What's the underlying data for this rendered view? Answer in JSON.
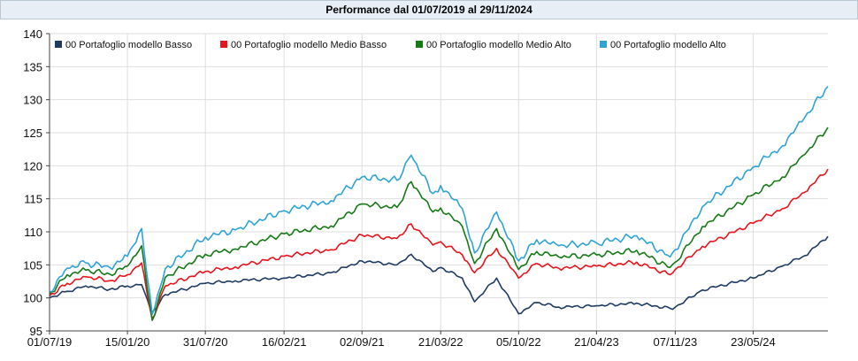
{
  "title": "Performance dal 01/07/2019 al 29/11/2024",
  "chart_data": {
    "type": "line",
    "title": "Performance dal 01/07/2019 al 29/11/2024",
    "xlabel": "",
    "ylabel": "",
    "ylim": [
      95,
      140
    ],
    "y_ticks": [
      95,
      100,
      105,
      110,
      115,
      120,
      125,
      130,
      135,
      140
    ],
    "x_ticks": [
      "01/07/19",
      "15/01/20",
      "31/07/20",
      "16/02/21",
      "02/09/21",
      "21/03/22",
      "05/10/22",
      "21/04/23",
      "07/11/23",
      "23/05/24"
    ],
    "x_tick_dates": [
      "2019-07-01",
      "2020-01-15",
      "2020-07-31",
      "2021-02-16",
      "2021-09-02",
      "2022-03-21",
      "2022-10-05",
      "2023-04-21",
      "2023-11-07",
      "2024-05-23"
    ],
    "x_range": [
      "2019-07-01",
      "2024-11-29"
    ],
    "grid": true,
    "legend_position": "top",
    "series": [
      {
        "name": "00 Portafoglio modello Basso",
        "color": "#1f3b63",
        "points": [
          [
            "2019-07-01",
            100.0
          ],
          [
            "2019-08-15",
            101.0
          ],
          [
            "2019-10-01",
            101.8
          ],
          [
            "2019-12-01",
            101.3
          ],
          [
            "2020-01-15",
            101.8
          ],
          [
            "2020-02-20",
            102.0
          ],
          [
            "2020-03-18",
            97.8
          ],
          [
            "2020-04-20",
            100.5
          ],
          [
            "2020-07-31",
            102.2
          ],
          [
            "2020-10-15",
            102.6
          ],
          [
            "2021-02-16",
            103.0
          ],
          [
            "2021-06-15",
            103.8
          ],
          [
            "2021-09-02",
            105.6
          ],
          [
            "2021-11-30",
            105.0
          ],
          [
            "2022-01-05",
            106.6
          ],
          [
            "2022-03-01",
            104.0
          ],
          [
            "2022-03-21",
            104.6
          ],
          [
            "2022-05-15",
            103.0
          ],
          [
            "2022-06-15",
            99.4
          ],
          [
            "2022-08-10",
            103.0
          ],
          [
            "2022-10-05",
            97.6
          ],
          [
            "2022-11-20",
            99.3
          ],
          [
            "2023-01-15",
            98.6
          ],
          [
            "2023-04-21",
            98.8
          ],
          [
            "2023-08-01",
            99.2
          ],
          [
            "2023-10-25",
            98.4
          ],
          [
            "2023-11-07",
            98.6
          ],
          [
            "2024-01-15",
            101.2
          ],
          [
            "2024-05-23",
            103.0
          ],
          [
            "2024-08-05",
            104.8
          ],
          [
            "2024-10-01",
            106.4
          ],
          [
            "2024-11-29",
            109.3
          ]
        ]
      },
      {
        "name": "00 Portafoglio modello Medio Basso",
        "color": "#e8141b",
        "points": [
          [
            "2019-07-01",
            100.3
          ],
          [
            "2019-08-15",
            102.2
          ],
          [
            "2019-10-01",
            103.2
          ],
          [
            "2019-12-01",
            102.6
          ],
          [
            "2020-01-15",
            103.5
          ],
          [
            "2020-02-20",
            105.3
          ],
          [
            "2020-03-18",
            96.8
          ],
          [
            "2020-04-20",
            101.8
          ],
          [
            "2020-07-31",
            104.0
          ],
          [
            "2020-10-15",
            104.7
          ],
          [
            "2021-02-16",
            106.3
          ],
          [
            "2021-06-15",
            107.3
          ],
          [
            "2021-09-02",
            109.5
          ],
          [
            "2021-11-30",
            109.0
          ],
          [
            "2022-01-05",
            111.2
          ],
          [
            "2022-03-01",
            108.0
          ],
          [
            "2022-03-21",
            108.5
          ],
          [
            "2022-05-15",
            106.5
          ],
          [
            "2022-06-15",
            103.8
          ],
          [
            "2022-08-10",
            107.5
          ],
          [
            "2022-10-05",
            103.0
          ],
          [
            "2022-11-20",
            105.2
          ],
          [
            "2023-01-15",
            104.5
          ],
          [
            "2023-04-21",
            104.8
          ],
          [
            "2023-08-01",
            105.4
          ],
          [
            "2023-10-25",
            103.5
          ],
          [
            "2023-11-07",
            104.3
          ],
          [
            "2024-01-15",
            107.8
          ],
          [
            "2024-05-23",
            111.3
          ],
          [
            "2024-08-05",
            113.5
          ],
          [
            "2024-10-01",
            116.0
          ],
          [
            "2024-11-29",
            119.5
          ]
        ]
      },
      {
        "name": "00 Portafoglio modello Medio Alto",
        "color": "#157a16",
        "points": [
          [
            "2019-07-01",
            100.6
          ],
          [
            "2019-08-15",
            103.5
          ],
          [
            "2019-10-01",
            104.2
          ],
          [
            "2019-12-01",
            103.6
          ],
          [
            "2020-01-15",
            104.8
          ],
          [
            "2020-02-20",
            107.9
          ],
          [
            "2020-03-18",
            96.6
          ],
          [
            "2020-04-20",
            103.1
          ],
          [
            "2020-07-31",
            106.6
          ],
          [
            "2020-10-15",
            107.4
          ],
          [
            "2021-02-16",
            109.7
          ],
          [
            "2021-06-15",
            110.9
          ],
          [
            "2021-09-02",
            114.2
          ],
          [
            "2021-11-30",
            113.7
          ],
          [
            "2022-01-05",
            117.6
          ],
          [
            "2022-03-01",
            113.0
          ],
          [
            "2022-03-21",
            113.6
          ],
          [
            "2022-05-15",
            110.8
          ],
          [
            "2022-06-15",
            105.2
          ],
          [
            "2022-08-10",
            110.5
          ],
          [
            "2022-10-05",
            104.3
          ],
          [
            "2022-11-20",
            107.0
          ],
          [
            "2023-01-15",
            106.2
          ],
          [
            "2023-04-21",
            106.5
          ],
          [
            "2023-08-01",
            107.2
          ],
          [
            "2023-10-25",
            104.6
          ],
          [
            "2023-11-07",
            105.4
          ],
          [
            "2024-01-15",
            110.8
          ],
          [
            "2024-05-23",
            115.6
          ],
          [
            "2024-08-05",
            118.3
          ],
          [
            "2024-10-01",
            121.7
          ],
          [
            "2024-11-29",
            125.8
          ]
        ]
      },
      {
        "name": "00 Portafoglio modello Alto",
        "color": "#2ea3d8",
        "points": [
          [
            "2019-07-01",
            100.9
          ],
          [
            "2019-08-15",
            104.5
          ],
          [
            "2019-10-01",
            105.3
          ],
          [
            "2019-12-01",
            104.6
          ],
          [
            "2020-01-15",
            106.3
          ],
          [
            "2020-02-20",
            110.5
          ],
          [
            "2020-03-18",
            97.5
          ],
          [
            "2020-04-20",
            104.4
          ],
          [
            "2020-07-31",
            109.2
          ],
          [
            "2020-10-15",
            110.3
          ],
          [
            "2021-02-16",
            113.2
          ],
          [
            "2021-06-15",
            114.7
          ],
          [
            "2021-09-02",
            118.3
          ],
          [
            "2021-11-30",
            117.8
          ],
          [
            "2022-01-05",
            121.6
          ],
          [
            "2022-03-01",
            115.8
          ],
          [
            "2022-03-21",
            117.0
          ],
          [
            "2022-05-15",
            113.5
          ],
          [
            "2022-06-15",
            106.8
          ],
          [
            "2022-08-10",
            113.0
          ],
          [
            "2022-10-05",
            105.6
          ],
          [
            "2022-11-20",
            108.8
          ],
          [
            "2023-01-15",
            107.9
          ],
          [
            "2023-04-21",
            108.3
          ],
          [
            "2023-08-01",
            109.4
          ],
          [
            "2023-10-25",
            106.2
          ],
          [
            "2023-11-07",
            107.3
          ],
          [
            "2024-01-15",
            113.8
          ],
          [
            "2024-05-23",
            119.8
          ],
          [
            "2024-08-05",
            123.0
          ],
          [
            "2024-10-01",
            127.3
          ],
          [
            "2024-11-29",
            132.0
          ]
        ]
      }
    ]
  }
}
